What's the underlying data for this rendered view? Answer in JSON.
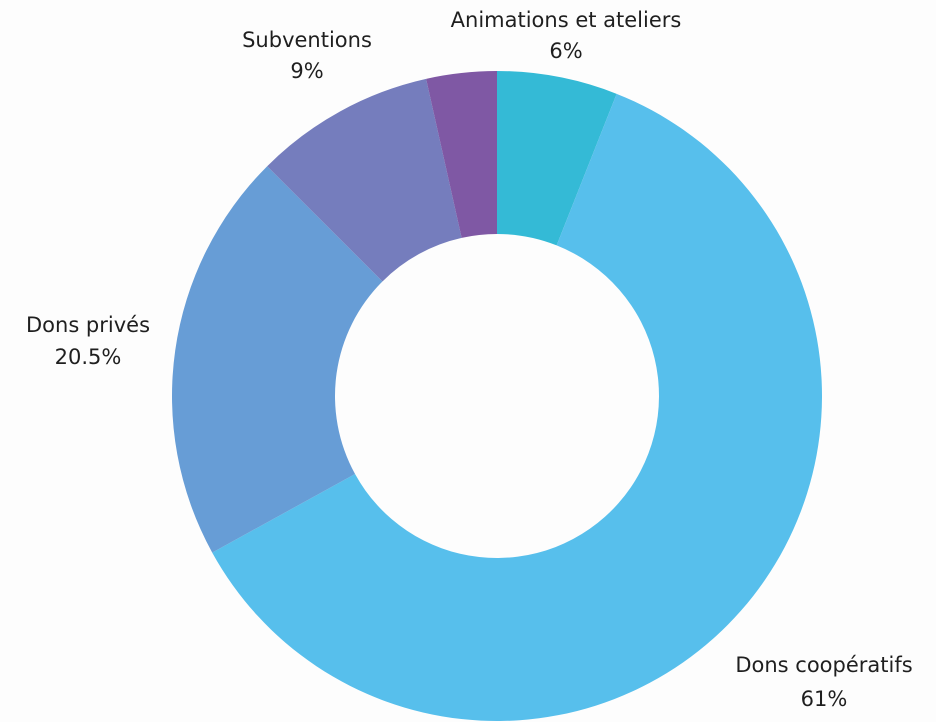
{
  "chart_data": {
    "type": "pie",
    "variant": "donut",
    "start_angle_deg": 0,
    "direction": "clockwise",
    "slices": [
      {
        "label": "Animations et ateliers",
        "value_label": "6%",
        "value": 6,
        "color": "#34bad6"
      },
      {
        "label": "Dons coopératifs",
        "value_label": "61%",
        "value": 61,
        "color": "#57bfec"
      },
      {
        "label": "Dons privés",
        "value_label": "20.5%",
        "value": 20.5,
        "color": "#679dd6"
      },
      {
        "label": "Subventions",
        "value_label": "9%",
        "value": 9,
        "color": "#757dbd"
      },
      {
        "label": "",
        "value_label": "",
        "value": 3.5,
        "color": "#7f58a4"
      }
    ]
  }
}
